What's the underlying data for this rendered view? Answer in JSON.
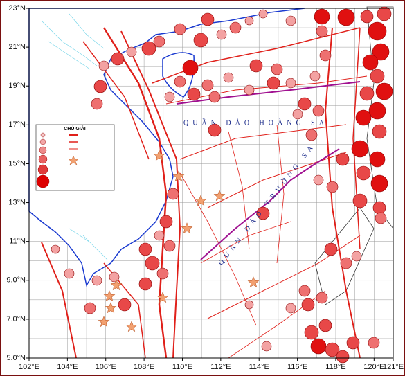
{
  "map_data": {
    "xlim": [
      102,
      121
    ],
    "ylim": [
      5,
      23
    ],
    "xticks": [
      {
        "value": 102,
        "label": "102°E"
      },
      {
        "value": 104,
        "label": "104°E"
      },
      {
        "value": 106,
        "label": "106°E"
      },
      {
        "value": 108,
        "label": "108°E"
      },
      {
        "value": 110,
        "label": "110°E"
      },
      {
        "value": 112,
        "label": "112°E"
      },
      {
        "value": 114,
        "label": "114°E"
      },
      {
        "value": 116,
        "label": "116°E"
      },
      {
        "value": 118,
        "label": "118°E"
      },
      {
        "value": 120,
        "label": "120°E"
      },
      {
        "value": 121,
        "label": "121°E"
      }
    ],
    "yticks": [
      {
        "value": 5,
        "label": "5.0°N"
      },
      {
        "value": 7,
        "label": "7.0°N"
      },
      {
        "value": 9,
        "label": "9.0°N"
      },
      {
        "value": 11,
        "label": "11°N"
      },
      {
        "value": 13,
        "label": "13°N"
      },
      {
        "value": 15,
        "label": "15°N"
      },
      {
        "value": 17,
        "label": "17°N"
      },
      {
        "value": 19,
        "label": "19°N"
      },
      {
        "value": 21,
        "label": "21°N"
      },
      {
        "value": 23,
        "label": "23°N"
      }
    ]
  },
  "labels": [
    "QUẦN ĐẢO HOÀNG SA",
    "QUẦN ĐẢO TRƯỜNG SA"
  ],
  "legend": {
    "title": "CHÚ GIẢI"
  }
}
